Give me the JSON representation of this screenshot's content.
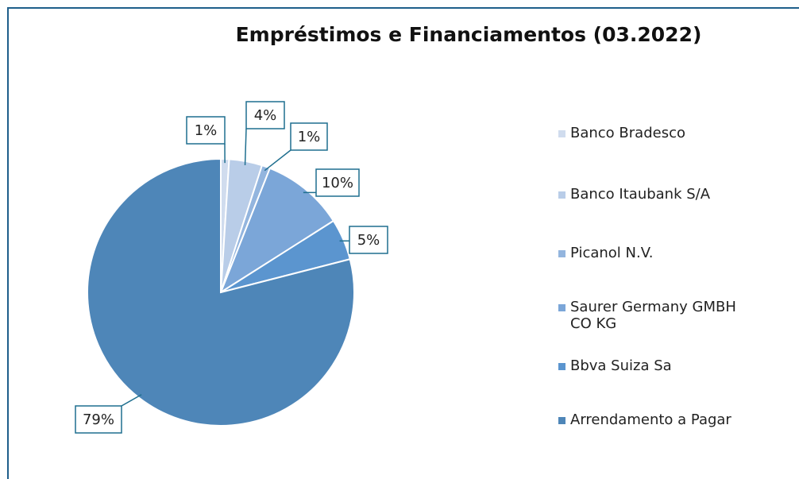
{
  "chart_data": {
    "type": "pie",
    "title": "Empréstimos e Financiamentos (03.2022)",
    "categories": [
      "Banco Bradesco",
      "Banco Itaubank S/A",
      "Picanol N.V.",
      "Saurer Germany GMBH CO KG",
      "Bbva Suiza Sa",
      "Arrendamento a Pagar"
    ],
    "values": [
      1,
      4,
      1,
      10,
      5,
      79
    ],
    "value_labels": [
      "1%",
      "4%",
      "1%",
      "10%",
      "5%",
      "79%"
    ],
    "colors": [
      "#d0dcee",
      "#b9cde8",
      "#93b5de",
      "#7ba6d8",
      "#5b95cf",
      "#4e86b8"
    ],
    "legend": "right"
  }
}
